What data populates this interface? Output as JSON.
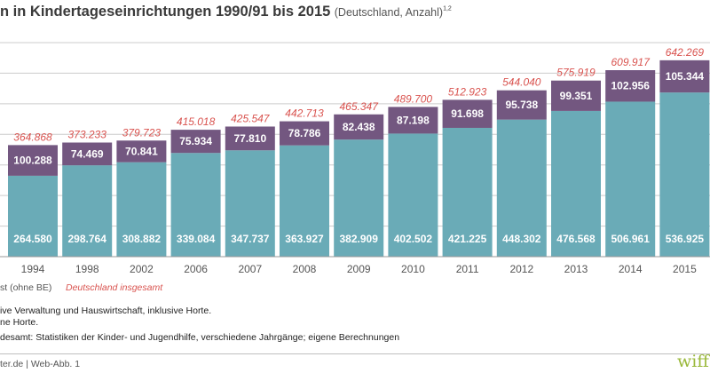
{
  "title": {
    "main": "n in Kindertageseinrichtungen 1990/91 bis 2015",
    "sub": "(Deutschland, Anzahl)",
    "sup": "1,2"
  },
  "legend": {
    "series_a": "st (ohne BE)",
    "series_b": "Deutschland insgesamt"
  },
  "footnotes": {
    "line1": "ive Verwaltung und Hauswirtschaft, inklusive Horte.",
    "line2": "ne Horte.",
    "source": "desamt: Statistiken der Kinder- und Jugendhilfe, verschiedene Jahrgänge; eigene Berechnungen"
  },
  "credit": "ter.de | Web-Abb. 1",
  "brand": "wiff",
  "colors": {
    "bottom": "#6aabb7",
    "top": "#735780",
    "total": "#d9534f",
    "axis_text": "#555555",
    "grid": "#cccccc"
  },
  "chart_data": {
    "type": "bar",
    "stacked": true,
    "categories": [
      "1994",
      "1998",
      "2002",
      "2006",
      "2007",
      "2008",
      "2009",
      "2010",
      "2011",
      "2012",
      "2013",
      "2014",
      "2015"
    ],
    "series": [
      {
        "name": "st (ohne BE)",
        "values": [
          264580,
          298764,
          308882,
          339084,
          347737,
          363927,
          382909,
          402502,
          421225,
          448302,
          476568,
          506961,
          536925
        ],
        "labels": [
          "264.580",
          "298.764",
          "308.882",
          "339.084",
          "347.737",
          "363.927",
          "382.909",
          "402.502",
          "421.225",
          "448.302",
          "476.568",
          "506.961",
          "536.925"
        ]
      },
      {
        "values": [
          100288,
          74469,
          70841,
          75934,
          77810,
          78786,
          82438,
          87198,
          91698,
          95738,
          99351,
          102956,
          105344
        ],
        "labels": [
          "100.288",
          "74.469",
          "70.841",
          "75.934",
          "77.810",
          "78.786",
          "82.438",
          "87.198",
          "91.698",
          "95.738",
          "99.351",
          "102.956",
          "105.344"
        ]
      }
    ],
    "totals": {
      "name": "Deutschland insgesamt",
      "values": [
        364868,
        373233,
        379723,
        415018,
        425547,
        442713,
        465347,
        489700,
        512923,
        544040,
        575919,
        609917,
        642269
      ],
      "labels": [
        "364.868",
        "373.233",
        "379.723",
        "415.018",
        "425.547",
        "442.713",
        "465.347",
        "489.700",
        "512.923",
        "544.040",
        "575.919",
        "609.917",
        "642.269"
      ]
    },
    "ylim": [
      0,
      700000
    ],
    "grid": true
  }
}
